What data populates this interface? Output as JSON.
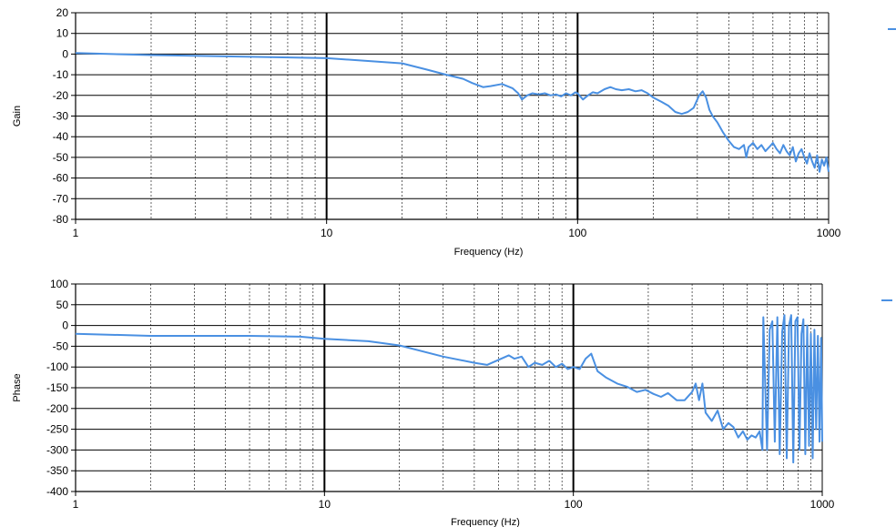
{
  "series_color": "#4a90e2",
  "chart_data": [
    {
      "type": "line",
      "name": "gain",
      "xscale": "log",
      "xlim": [
        1,
        1000
      ],
      "ylim": [
        -80,
        20
      ],
      "xlabel": "Frequency (Hz)",
      "ylabel": "Gain",
      "x_tick_labels": [
        "1",
        "10",
        "100",
        "1000"
      ],
      "y_ticks": [
        20,
        10,
        0,
        -10,
        -20,
        -30,
        -40,
        -50,
        -60,
        -70,
        -80
      ],
      "grid": true,
      "legend_marker": true,
      "series": [
        {
          "name": "Gain",
          "x": [
            1,
            2,
            5,
            10,
            20,
            25,
            30,
            35,
            38,
            42,
            45,
            50,
            55,
            58,
            60,
            63,
            66,
            70,
            74,
            78,
            82,
            86,
            90,
            94,
            98,
            100,
            105,
            110,
            115,
            120,
            128,
            135,
            142,
            150,
            160,
            170,
            180,
            190,
            200,
            215,
            230,
            245,
            260,
            275,
            290,
            305,
            315,
            325,
            335,
            345,
            360,
            380,
            400,
            420,
            440,
            460,
            470,
            480,
            500,
            520,
            540,
            560,
            580,
            600,
            620,
            640,
            660,
            680,
            700,
            720,
            740,
            760,
            780,
            800,
            820,
            840,
            860,
            880,
            900,
            920,
            940,
            960,
            980,
            1000
          ],
          "values": [
            0.5,
            -0.5,
            -1.3,
            -2,
            -4.5,
            -7.5,
            -10,
            -12,
            -14,
            -16,
            -15.5,
            -14.5,
            -16.5,
            -19,
            -22,
            -20,
            -19,
            -19.5,
            -19,
            -20,
            -19.5,
            -20.5,
            -19,
            -20,
            -18.5,
            -19,
            -22,
            -20,
            -18.5,
            -19,
            -17,
            -16,
            -17,
            -17.5,
            -17,
            -18,
            -17.5,
            -19,
            -21,
            -23,
            -25,
            -28,
            -29,
            -28,
            -26,
            -20,
            -18,
            -21,
            -27,
            -30,
            -33,
            -38,
            -42,
            -45,
            -46,
            -44,
            -50,
            -45,
            -43,
            -46,
            -44,
            -47,
            -45,
            -43,
            -46,
            -48,
            -44,
            -47,
            -49,
            -45,
            -52,
            -48,
            -46,
            -50,
            -53,
            -48,
            -52,
            -55,
            -49,
            -57,
            -51,
            -54,
            -50,
            -57
          ]
        }
      ]
    },
    {
      "type": "line",
      "name": "phase",
      "xscale": "log",
      "xlim": [
        1,
        1000
      ],
      "ylim": [
        -400,
        100
      ],
      "xlabel": "Frequency (Hz)",
      "ylabel": "Phase",
      "x_tick_labels": [
        "1",
        "10",
        "100",
        "1000"
      ],
      "y_ticks": [
        100,
        50,
        0,
        -50,
        -100,
        -150,
        -200,
        -250,
        -300,
        -350,
        -400
      ],
      "grid": true,
      "legend_marker": true,
      "series": [
        {
          "name": "Phase",
          "x": [
            1,
            2,
            5,
            8,
            10,
            15,
            20,
            30,
            40,
            45,
            50,
            55,
            58,
            62,
            66,
            70,
            75,
            80,
            85,
            90,
            95,
            100,
            106,
            112,
            118,
            125,
            135,
            150,
            165,
            180,
            195,
            210,
            225,
            240,
            260,
            280,
            300,
            310,
            320,
            330,
            340,
            360,
            380,
            400,
            420,
            440,
            460,
            480,
            500,
            520,
            540,
            560,
            575,
            580,
            600,
            615,
            630,
            645,
            660,
            675,
            690,
            705,
            720,
            735,
            750,
            765,
            780,
            795,
            810,
            825,
            840,
            855,
            870,
            885,
            900,
            915,
            930,
            945,
            960,
            975,
            990,
            1000
          ],
          "values": [
            -20,
            -25,
            -25,
            -27,
            -32,
            -38,
            -48,
            -75,
            -90,
            -95,
            -83,
            -72,
            -80,
            -75,
            -100,
            -90,
            -95,
            -85,
            -100,
            -92,
            -105,
            -100,
            -105,
            -80,
            -68,
            -110,
            -125,
            -140,
            -148,
            -160,
            -155,
            -165,
            -172,
            -163,
            -180,
            -180,
            -160,
            -140,
            -180,
            -140,
            -210,
            -230,
            -205,
            -250,
            -235,
            -245,
            -270,
            -255,
            -275,
            -265,
            -270,
            -255,
            -300,
            20,
            -300,
            -10,
            10,
            -280,
            20,
            -310,
            -15,
            25,
            -320,
            0,
            25,
            -330,
            10,
            20,
            -300,
            -20,
            15,
            -310,
            0,
            -290,
            -20,
            -320,
            -10,
            -250,
            -25,
            -280,
            -30,
            -280
          ]
        }
      ]
    }
  ]
}
